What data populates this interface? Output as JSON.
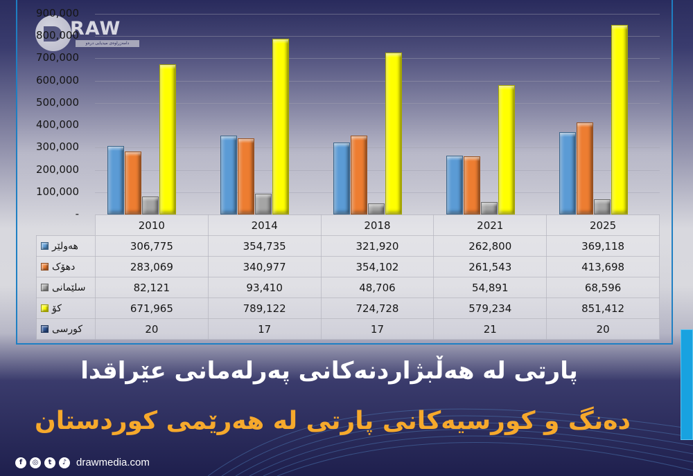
{
  "brand": {
    "logo_text": "RAW",
    "logo_tagline": "دامەزراوەی میدیایی درەو",
    "website": "drawmedia.com",
    "social_icons": [
      "facebook-icon",
      "instagram-icon",
      "twitter-icon",
      "tiktok-icon"
    ]
  },
  "titles": {
    "line1": "پارتی لە هەڵبژاردنەکانی پەرلەمانی عێراقدا",
    "line2": "دەنگ و کورسیەکانی پارتی لە هەرێمی کوردستان"
  },
  "colors": {
    "erbil": "#5b9bd5",
    "duhok": "#ed7d31",
    "sulaimani": "#a5a5a5",
    "total": "#ffff00",
    "seats": "#2f5597",
    "title_line2": "#f6a92c",
    "frame": "#1e7fc3"
  },
  "chart_data": {
    "type": "bar",
    "title": "دەنگ و کورسیەکانی پارتی لە هەرێمی کوردستان",
    "categories": [
      "2010",
      "2014",
      "2018",
      "2021",
      "2025"
    ],
    "series": [
      {
        "name": "هەولێر",
        "color": "#5b9bd5",
        "values": [
          306775,
          354735,
          321920,
          262800,
          369118
        ]
      },
      {
        "name": "دهۆک",
        "color": "#ed7d31",
        "values": [
          283069,
          340977,
          354102,
          261543,
          413698
        ]
      },
      {
        "name": "سلێمانی",
        "color": "#a5a5a5",
        "values": [
          82121,
          93410,
          48706,
          54891,
          68596
        ]
      },
      {
        "name": "کۆ",
        "color": "#ffff00",
        "values": [
          671965,
          789122,
          724728,
          579234,
          851412
        ]
      }
    ],
    "table_only_series": [
      {
        "name": "کورسی",
        "color": "#2f5597",
        "values": [
          20,
          17,
          17,
          21,
          20
        ]
      }
    ],
    "ylim": [
      0,
      900000
    ],
    "yticks": [
      "-",
      "100,000",
      "200,000",
      "300,000",
      "400,000",
      "500,000",
      "600,000",
      "700,000",
      "800,000",
      "900,000"
    ],
    "grid": true,
    "legend_position": "data-table",
    "xlabel": "",
    "ylabel": ""
  },
  "table": {
    "headers": [
      "2010",
      "2014",
      "2018",
      "2021",
      "2025"
    ],
    "rows": [
      {
        "label": "هەولێر",
        "values": [
          "306,775",
          "354,735",
          "321,920",
          "262,800",
          "369,118"
        ]
      },
      {
        "label": "دهۆک",
        "values": [
          "283,069",
          "340,977",
          "354,102",
          "261,543",
          "413,698"
        ]
      },
      {
        "label": "سلێمانی",
        "values": [
          "82,121",
          "93,410",
          "48,706",
          "54,891",
          "68,596"
        ]
      },
      {
        "label": "کۆ",
        "values": [
          "671,965",
          "789,122",
          "724,728",
          "579,234",
          "851,412"
        ]
      },
      {
        "label": "کورسی",
        "values": [
          "20",
          "17",
          "17",
          "21",
          "20"
        ]
      }
    ]
  }
}
